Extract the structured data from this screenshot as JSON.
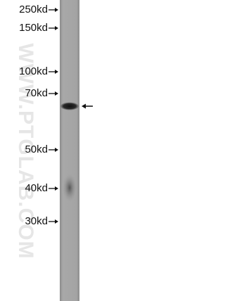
{
  "markers": [
    "250kd",
    "150kd",
    "100kd",
    "70kd",
    "50kd",
    "40kd",
    "30kd"
  ],
  "watermark": "WWW.PTGLAB.COM"
}
